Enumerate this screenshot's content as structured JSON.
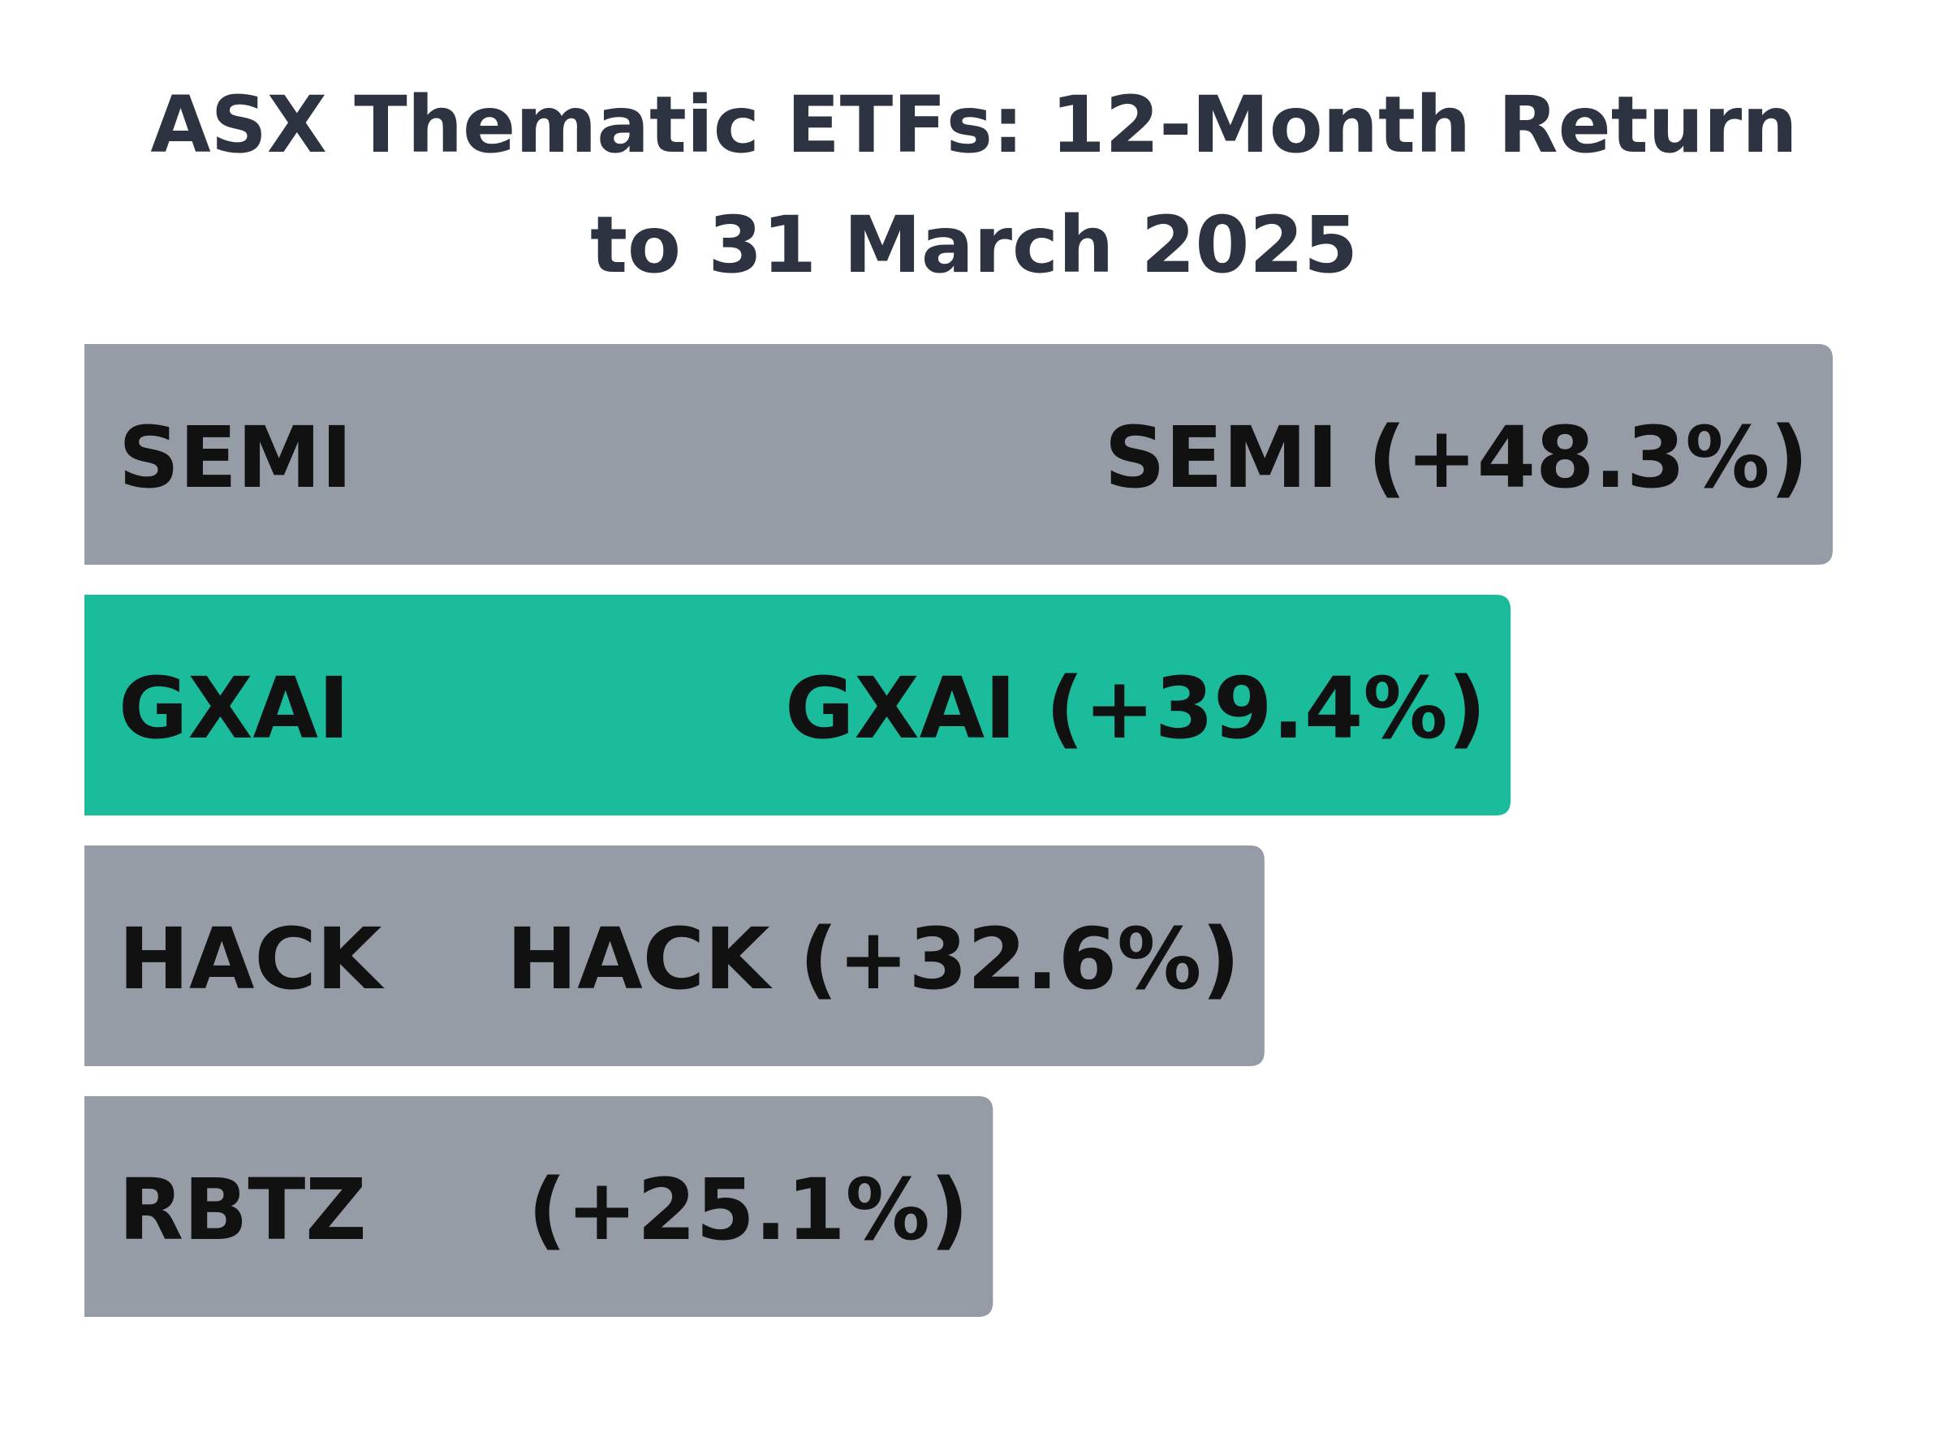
{
  "chart_data": {
    "type": "bar",
    "orientation": "horizontal",
    "title": "ASX Thematic ETFs: 12-Month Return to 31 March 2025",
    "categories": [
      "SEMI",
      "GXAI",
      "HACK",
      "RBTZ"
    ],
    "values": [
      48.3,
      39.4,
      32.6,
      25.1
    ],
    "value_labels": [
      "SEMI (+48.3%)",
      "GXAI (+39.4%)",
      "HACK (+32.6%)",
      "(+25.1%)"
    ],
    "colors": [
      "#969ca6",
      "#1abc9c",
      "#969ca6",
      "#969ca6"
    ]
  }
}
